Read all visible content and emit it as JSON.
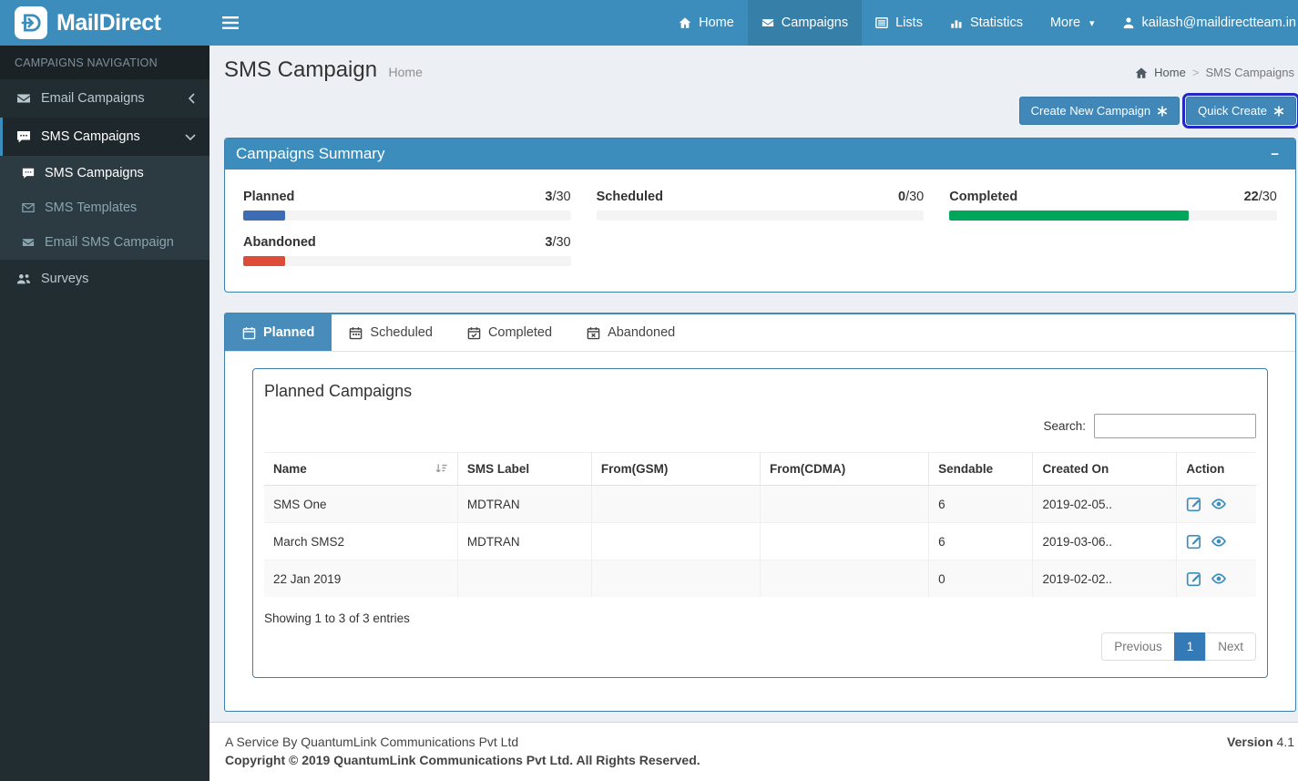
{
  "brand": {
    "name": "MailDirect"
  },
  "navbar": {
    "home": "Home",
    "campaigns": "Campaigns",
    "lists": "Lists",
    "statistics": "Statistics",
    "more": "More",
    "more_caret": "▾",
    "user_email": "kailash@maildirectteam.in"
  },
  "sidebar": {
    "header": "CAMPAIGNS NAVIGATION",
    "email_campaigns": "Email Campaigns",
    "sms_campaigns_parent": "SMS Campaigns",
    "submenu": {
      "sms_campaigns": "SMS Campaigns",
      "sms_templates": "SMS Templates",
      "email_sms_campaign": "Email SMS Campaign"
    },
    "surveys": "Surveys"
  },
  "page": {
    "title": "SMS Campaign",
    "subtitle": "Home",
    "breadcrumb": {
      "home": "Home",
      "separator": ">",
      "current": "SMS Campaigns"
    }
  },
  "actions": {
    "create_new": "Create New Campaign",
    "quick_create": "Quick Create"
  },
  "summary": {
    "title": "Campaigns Summary",
    "collapse_icon": "−",
    "metrics": [
      {
        "label": "Planned",
        "value": "3",
        "max": "/30",
        "percent": 10,
        "color": "#3b6cb4"
      },
      {
        "label": "Scheduled",
        "value": "0",
        "max": "/30",
        "percent": 0,
        "color": "#3b6cb4"
      },
      {
        "label": "Completed",
        "value": "22",
        "max": "/30",
        "percent": 73,
        "color": "#00a65a"
      },
      {
        "label": "Abandoned",
        "value": "3",
        "max": "/30",
        "percent": 10,
        "color": "#dd4b39"
      }
    ]
  },
  "tabs": {
    "planned": "Planned",
    "scheduled": "Scheduled",
    "completed": "Completed",
    "abandoned": "Abandoned"
  },
  "table": {
    "title": "Planned Campaigns",
    "search_label": "Search:",
    "columns": [
      "Name",
      "SMS Label",
      "From(GSM)",
      "From(CDMA)",
      "Sendable",
      "Created On",
      "Action"
    ],
    "rows": [
      {
        "name": "SMS One",
        "sms_label": "MDTRAN",
        "from_gsm": "",
        "from_cdma": "",
        "sendable": "6",
        "created_on": "2019-02-05.."
      },
      {
        "name": "March SMS2",
        "sms_label": "MDTRAN",
        "from_gsm": "",
        "from_cdma": "",
        "sendable": "6",
        "created_on": "2019-03-06.."
      },
      {
        "name": "22 Jan 2019",
        "sms_label": "",
        "from_gsm": "",
        "from_cdma": "",
        "sendable": "0",
        "created_on": "2019-02-02.."
      }
    ],
    "info": "Showing 1 to 3 of 3 entries",
    "pagination": {
      "previous": "Previous",
      "page": "1",
      "next": "Next"
    }
  },
  "footer": {
    "service": "A Service By QuantumLink Communications Pvt Ltd",
    "copyright": "Copyright © 2019 QuantumLink Communications Pvt Ltd. All Rights Reserved.",
    "version_label": "Version",
    "version": "4.1"
  },
  "colors": {
    "accent": "#3c8dbc",
    "navbar_active": "#367fa9",
    "sidebar_bg": "#222d32",
    "progress_blue": "#3b6cb4",
    "progress_green": "#00a65a",
    "progress_red": "#dd4b39",
    "pagination_active": "#337ab7"
  }
}
